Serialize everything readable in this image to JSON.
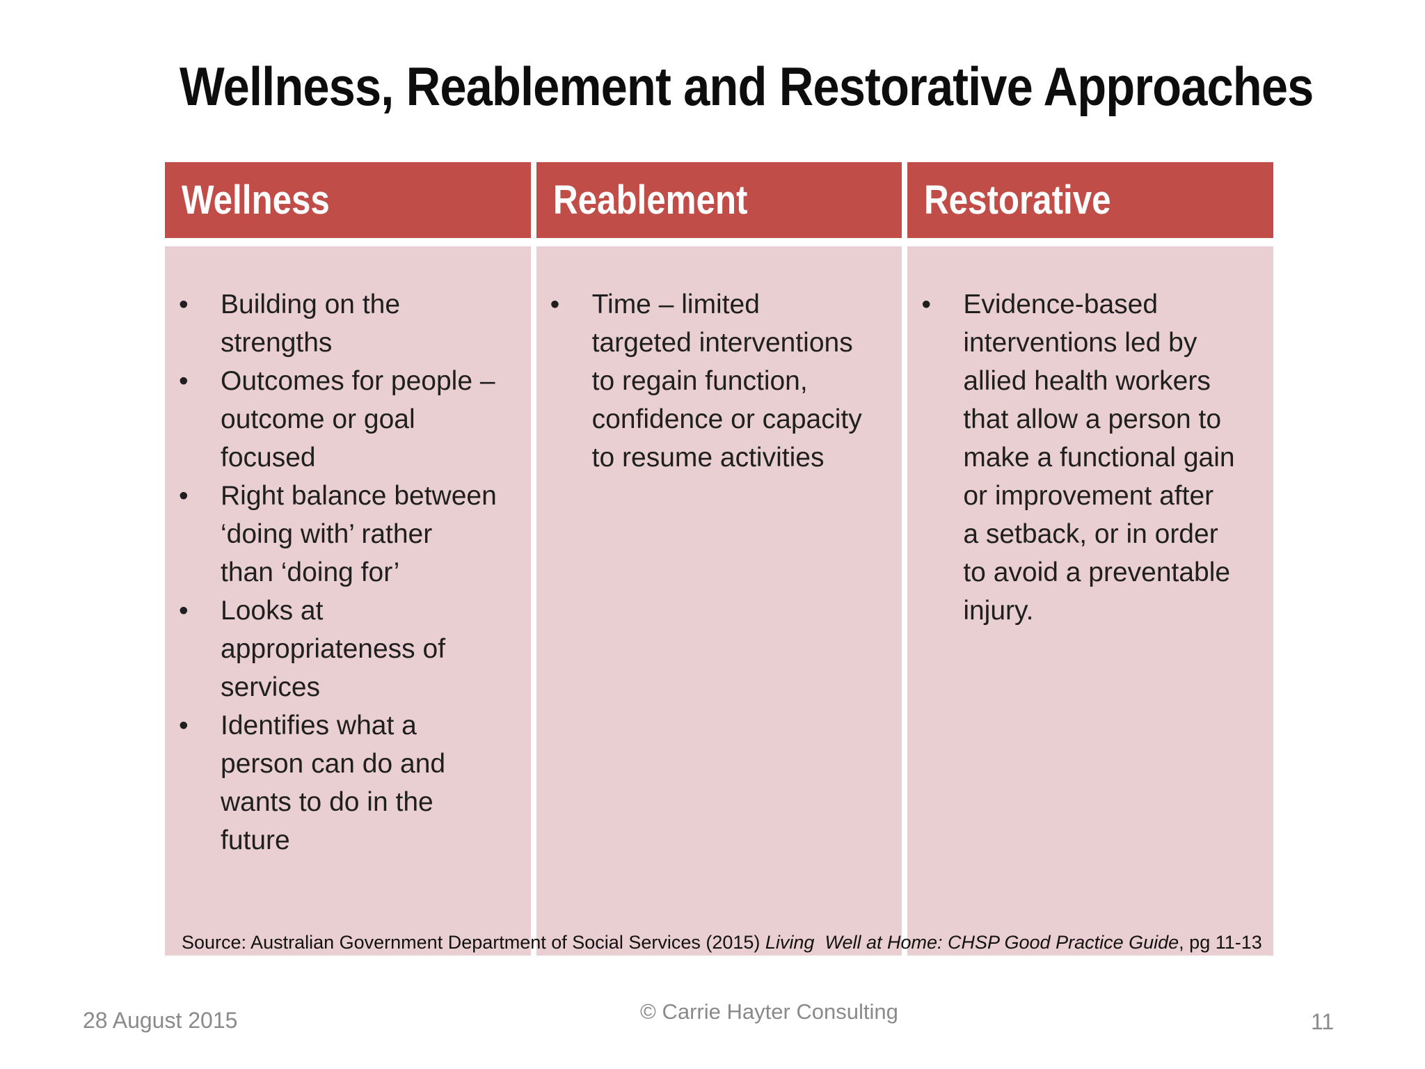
{
  "title": "Wellness, Reablement and Restorative Approaches",
  "bullet_char": "•",
  "table": {
    "columns": [
      {
        "header": "Wellness",
        "bullets": [
          "Building on the\nstrengths",
          "Outcomes for people –\noutcome or goal\nfocused",
          "Right balance between\n‘doing with’ rather\nthan ‘doing for’",
          "Looks at\nappropriateness of\nservices",
          "Identifies what a\nperson can do and\nwants to do in the\nfuture"
        ]
      },
      {
        "header": "Reablement",
        "bullets": [
          "Time – limited\ntargeted interventions\nto regain function,\nconfidence or capacity\nto resume activities"
        ]
      },
      {
        "header": "Restorative",
        "bullets": [
          "Evidence-based\ninterventions led by\nallied health workers\nthat allow a person to\nmake a functional gain\nor improvement after\na setback, or in order\nto avoid a preventable\ninjury."
        ]
      }
    ]
  },
  "source": {
    "prefix": "Source: Australian Government Department of Social Services (2015) ",
    "italic": "Living  Well at Home: CHSP Good Practice Guide",
    "suffix": ", pg 11-13"
  },
  "footer": {
    "date": "28 August 2015",
    "copyright": "© Carrie Hayter Consulting",
    "page_number": "11"
  },
  "colors": {
    "header_bg": "#C04D48",
    "body_bg": "#EACFD2",
    "header_text": "#FFFFFF",
    "body_text": "#1F1F1F",
    "footer_text": "#8A8A8A"
  }
}
